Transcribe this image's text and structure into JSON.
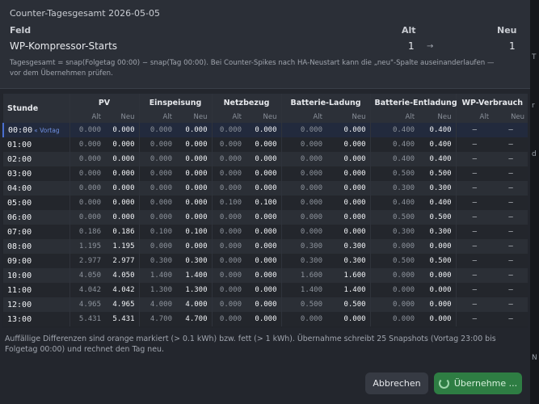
{
  "card": {
    "title": "Counter-Tagesgesamt 2026-05-05",
    "col_field": "Feld",
    "col_old": "Alt",
    "col_new": "Neu",
    "row": {
      "field": "WP-Kompressor-Starts",
      "old": "1",
      "arrow": "→",
      "new": "1"
    },
    "hint": "Tagesgesamt = snap(Folgetag 00:00) − snap(Tag 00:00). Bei Counter-Spikes nach HA-Neustart kann die „neu\"-Spalte auseinanderlaufen — vor dem Übernehmen prüfen."
  },
  "table": {
    "hour_header": "Stunde",
    "groups": [
      "PV",
      "Einspeisung",
      "Netzbezug",
      "Batterie-Ladung",
      "Batterie-Entladung",
      "WP-Verbrauch"
    ],
    "sub_old": "Alt",
    "sub_new": "Neu",
    "vortag_label": "« Vortag",
    "rows": [
      {
        "hour": "00:00",
        "vortag": true,
        "vals": [
          "0.000",
          "0.000",
          "0.000",
          "0.000",
          "0.000",
          "0.000",
          "0.000",
          "0.000",
          "0.400",
          "0.400",
          "—",
          "—"
        ]
      },
      {
        "hour": "01:00",
        "vals": [
          "0.000",
          "0.000",
          "0.000",
          "0.000",
          "0.000",
          "0.000",
          "0.000",
          "0.000",
          "0.400",
          "0.400",
          "—",
          "—"
        ]
      },
      {
        "hour": "02:00",
        "vals": [
          "0.000",
          "0.000",
          "0.000",
          "0.000",
          "0.000",
          "0.000",
          "0.000",
          "0.000",
          "0.400",
          "0.400",
          "—",
          "—"
        ]
      },
      {
        "hour": "03:00",
        "vals": [
          "0.000",
          "0.000",
          "0.000",
          "0.000",
          "0.000",
          "0.000",
          "0.000",
          "0.000",
          "0.500",
          "0.500",
          "—",
          "—"
        ]
      },
      {
        "hour": "04:00",
        "vals": [
          "0.000",
          "0.000",
          "0.000",
          "0.000",
          "0.000",
          "0.000",
          "0.000",
          "0.000",
          "0.300",
          "0.300",
          "—",
          "—"
        ]
      },
      {
        "hour": "05:00",
        "vals": [
          "0.000",
          "0.000",
          "0.000",
          "0.000",
          "0.100",
          "0.100",
          "0.000",
          "0.000",
          "0.400",
          "0.400",
          "—",
          "—"
        ]
      },
      {
        "hour": "06:00",
        "vals": [
          "0.000",
          "0.000",
          "0.000",
          "0.000",
          "0.000",
          "0.000",
          "0.000",
          "0.000",
          "0.500",
          "0.500",
          "—",
          "—"
        ]
      },
      {
        "hour": "07:00",
        "vals": [
          "0.186",
          "0.186",
          "0.100",
          "0.100",
          "0.000",
          "0.000",
          "0.000",
          "0.000",
          "0.300",
          "0.300",
          "—",
          "—"
        ]
      },
      {
        "hour": "08:00",
        "vals": [
          "1.195",
          "1.195",
          "0.000",
          "0.000",
          "0.000",
          "0.000",
          "0.300",
          "0.300",
          "0.000",
          "0.000",
          "—",
          "—"
        ]
      },
      {
        "hour": "09:00",
        "vals": [
          "2.977",
          "2.977",
          "0.300",
          "0.300",
          "0.000",
          "0.000",
          "0.300",
          "0.300",
          "0.500",
          "0.500",
          "—",
          "—"
        ]
      },
      {
        "hour": "10:00",
        "vals": [
          "4.050",
          "4.050",
          "1.400",
          "1.400",
          "0.000",
          "0.000",
          "1.600",
          "1.600",
          "0.000",
          "0.000",
          "—",
          "—"
        ]
      },
      {
        "hour": "11:00",
        "vals": [
          "4.042",
          "4.042",
          "1.300",
          "1.300",
          "0.000",
          "0.000",
          "1.400",
          "1.400",
          "0.000",
          "0.000",
          "—",
          "—"
        ]
      },
      {
        "hour": "12:00",
        "vals": [
          "4.965",
          "4.965",
          "4.000",
          "4.000",
          "0.000",
          "0.000",
          "0.500",
          "0.500",
          "0.000",
          "0.000",
          "—",
          "—"
        ]
      },
      {
        "hour": "13:00",
        "vals": [
          "5.431",
          "5.431",
          "4.700",
          "4.700",
          "0.000",
          "0.000",
          "0.000",
          "0.000",
          "0.000",
          "0.000",
          "—",
          "—"
        ]
      }
    ]
  },
  "footnote": "Auffällige Differenzen sind orange markiert (> 0.1 kWh) bzw. fett (> 1 kWh). Übernahme schreibt 25 Snapshots (Vortag 23:00 bis Folgetag 00:00) und rechnet den Tag neu.",
  "buttons": {
    "cancel": "Abbrechen",
    "apply": "Übernehme ..."
  },
  "edge_chars": [
    "T",
    "r",
    "d",
    "N"
  ]
}
